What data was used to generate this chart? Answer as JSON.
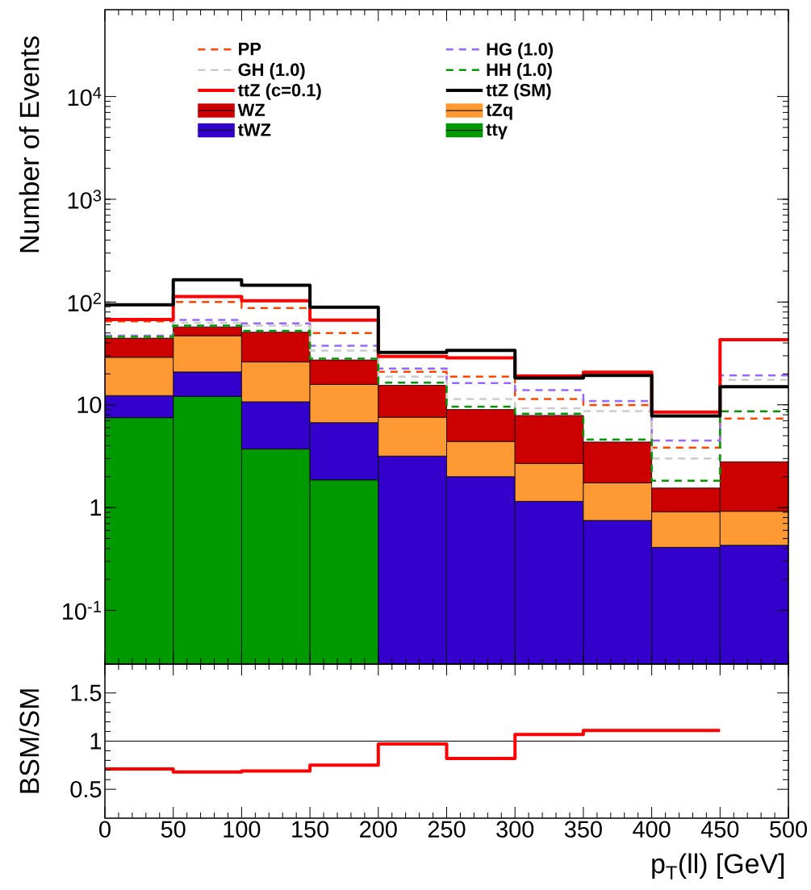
{
  "chart_data": [
    {
      "type": "bar",
      "x": [
        25,
        75,
        125,
        175,
        225,
        275,
        325,
        375,
        425,
        475
      ],
      "stacked": true,
      "log": true,
      "legend": "top",
      "tick_labels": "y",
      "ylabel": "Number of Events",
      "xlim": [
        0,
        500
      ],
      "xticks": [
        0,
        50,
        100,
        150,
        200,
        250,
        300,
        350,
        400,
        450,
        500
      ],
      "ylim": [
        0.03,
        70000
      ],
      "yticks": [
        {
          "value": 0.1,
          "label": "10$^{-1}$"
        },
        1,
        10,
        {
          "value": 100,
          "label": "10$^{2}$"
        },
        {
          "value": 1000,
          "label": "10$^{3}$"
        },
        {
          "value": 10000,
          "label": "10$^{4}$"
        }
      ],
      "series": [
        {
          "name": "PP",
          "type": "step",
          "line_style": "dashed",
          "color": "#ff4500",
          "x": [
            0,
            50,
            100,
            150,
            200,
            250,
            300,
            350,
            400,
            450,
            500
          ],
          "values": [
            65,
            100,
            87.5,
            50,
            21,
            18.8,
            11.4,
            9.95,
            3.83,
            7.35,
            7.35
          ]
        },
        {
          "name": "HG (1.0)",
          "type": "step",
          "line_style": "dashed",
          "color": "#9966ff",
          "x": [
            0,
            50,
            100,
            150,
            200,
            250,
            300,
            350,
            400,
            450,
            500
          ],
          "values": [
            47,
            67,
            62,
            37.6,
            22.5,
            16.3,
            13.9,
            10.9,
            4.48,
            19.3,
            19.3
          ]
        },
        {
          "name": "GH (1.0)",
          "type": "step",
          "line_style": "dashed",
          "color": "#cccccc",
          "x": [
            0,
            50,
            100,
            150,
            200,
            250,
            300,
            350,
            400,
            450,
            500
          ],
          "values": [
            46,
            63,
            59,
            33.7,
            18.8,
            11.4,
            9.25,
            8.7,
            3.0,
            17.5,
            17.5
          ]
        },
        {
          "name": "HH (1.0)",
          "type": "step",
          "line_style": "dashed",
          "color": "#009900",
          "x": [
            0,
            50,
            100,
            150,
            200,
            250,
            300,
            350,
            400,
            450,
            500
          ],
          "values": [
            45.8,
            59,
            52.4,
            28.1,
            16.4,
            9.6,
            8.2,
            4.6,
            1.83,
            8.65,
            8.65
          ]
        },
        {
          "name": "ttZ (c=0.1)",
          "type": "step",
          "line_style": "solid",
          "color": "#ff0000",
          "x": [
            0,
            50,
            100,
            150,
            200,
            250,
            300,
            350,
            400,
            450,
            500
          ],
          "values": [
            67.5,
            113,
            103,
            66.7,
            29.5,
            28.6,
            19.1,
            20.8,
            8.5,
            43,
            43
          ]
        },
        {
          "name": "ttZ (SM)",
          "type": "step",
          "line_style": "solid",
          "color": "#000000",
          "x": [
            0,
            50,
            100,
            150,
            200,
            250,
            300,
            350,
            400,
            450,
            500
          ],
          "values": [
            94,
            165,
            146,
            89,
            32.3,
            33.9,
            18.2,
            19.3,
            7.8,
            15,
            15
          ]
        },
        {
          "name": "ttγ",
          "color": "#009900",
          "values": [
            7.5,
            12.1,
            3.71,
            1.86,
            null,
            null,
            null,
            null,
            null,
            null
          ]
        },
        {
          "name": "tWZ",
          "color": "#3300cc",
          "values": [
            4.8,
            8.8,
            7.0,
            4.85,
            3.17,
            2.0,
            1.15,
            0.75,
            0.41,
            0.43
          ]
        },
        {
          "name": "tZq",
          "color": "#ff9933",
          "values": [
            16.7,
            26.1,
            15.4,
            9.1,
            4.4,
            2.4,
            1.53,
            0.99,
            0.5,
            0.49
          ]
        },
        {
          "name": "WZ",
          "color": "#cc0000",
          "values": [
            15.5,
            10.3,
            24.8,
            11.5,
            7.9,
            4.6,
            5.2,
            2.6,
            0.64,
            1.87
          ]
        }
      ]
    },
    {
      "type": "step",
      "x": [
        0,
        50,
        100,
        150,
        200,
        250,
        300,
        350,
        400,
        450
      ],
      "xlabel": "p$_{T}$(ll) [GeV]",
      "ylabel": "BSM/SM",
      "xlim": [
        0,
        500
      ],
      "xticks": [
        0,
        50,
        100,
        150,
        200,
        250,
        300,
        350,
        400,
        450,
        500
      ],
      "ylim": [
        0.2,
        1.8
      ],
      "yticks": [
        0.5,
        1,
        1.5
      ],
      "ref_lines": [
        {
          "axis": "y",
          "value": 1,
          "color": "#000000"
        }
      ],
      "series": [
        {
          "line_style": "solid",
          "color": "#ff0000",
          "values": [
            0.71,
            0.68,
            0.69,
            0.75,
            0.97,
            0.82,
            1.07,
            1.11,
            1.11,
            1.11
          ]
        }
      ]
    }
  ]
}
